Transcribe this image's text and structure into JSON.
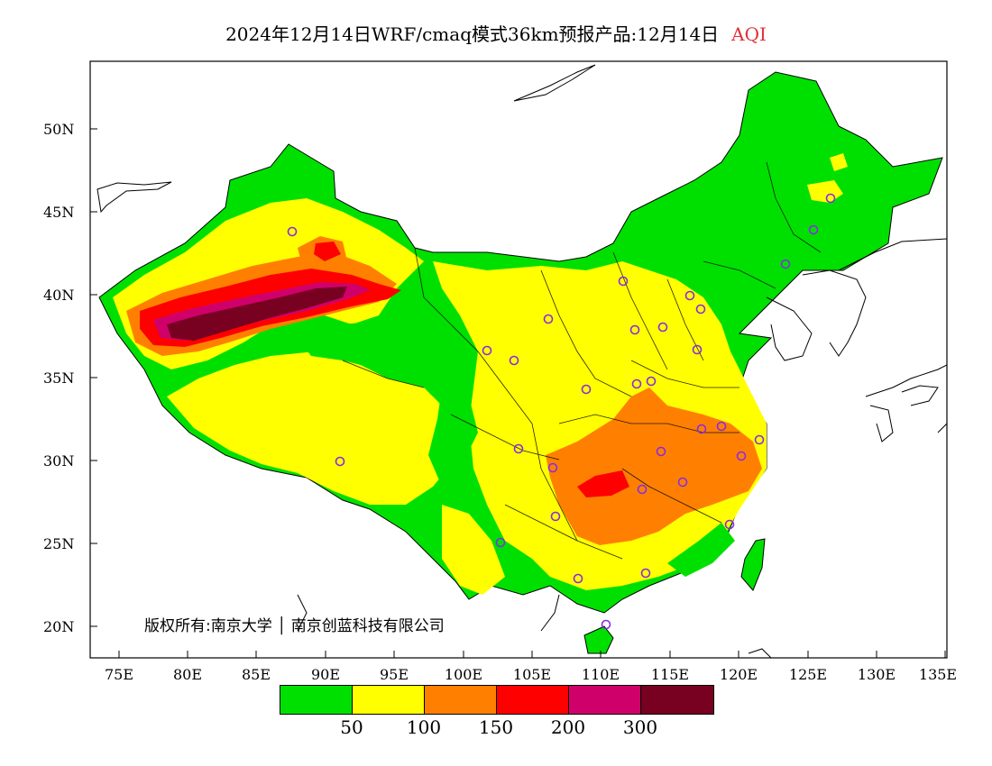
{
  "title": {
    "main": "2024年12月14日WRF/cmaq模式36km预报产品:12月14日",
    "variable": "AQI"
  },
  "axes": {
    "lat_labels": [
      "50N",
      "45N",
      "40N",
      "35N",
      "30N",
      "25N",
      "20N"
    ],
    "lon_labels": [
      "75E",
      "80E",
      "85E",
      "90E",
      "95E",
      "100E",
      "105E",
      "110E",
      "115E",
      "120E",
      "125E",
      "130E",
      "135E"
    ]
  },
  "copyright": "版权所有:南京大学 │ 南京创蓝科技有限公司",
  "legend": {
    "colors": [
      "#00e000",
      "#ffff00",
      "#ff8000",
      "#ff0000",
      "#d0006a",
      "#780020"
    ],
    "labels": [
      "50",
      "100",
      "150",
      "200",
      "300"
    ]
  }
}
